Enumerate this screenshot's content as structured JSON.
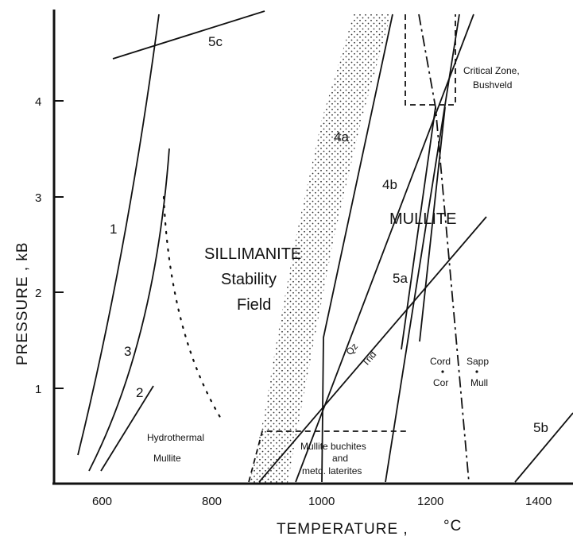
{
  "axes": {
    "x_label": "TEMPERATURE , ",
    "x_unit": "°C",
    "y_label": "PRESSURE , kB",
    "x_ticks": [
      "600",
      "800",
      "1000",
      "1200",
      "1400"
    ],
    "y_ticks": [
      "1",
      "2",
      "3",
      "4"
    ]
  },
  "curve_labels": {
    "c1": "1",
    "c2": "2",
    "c3": "3",
    "c4a": "4a",
    "c4b": "4b",
    "c5a": "5a",
    "c5b": "5b",
    "c5c": "5c"
  },
  "fields": {
    "sillimanite_1": "SILLIMANITE",
    "sillimanite_2": "Stability",
    "sillimanite_3": "Field",
    "mullite": "MULLITE",
    "critical_1": "Critical Zone,",
    "critical_2": "Bushveld",
    "hydro_1": "Hydrothermal",
    "hydro_2": "Mullite",
    "buch_1": "Mullite buchites",
    "buch_2": "and",
    "buch_3": "metd. laterites",
    "qz": "Qz",
    "trid": "Trid",
    "cord": "Cord",
    "cor": "Cor",
    "sapp": "Sapp",
    "mull": "Mull"
  }
}
